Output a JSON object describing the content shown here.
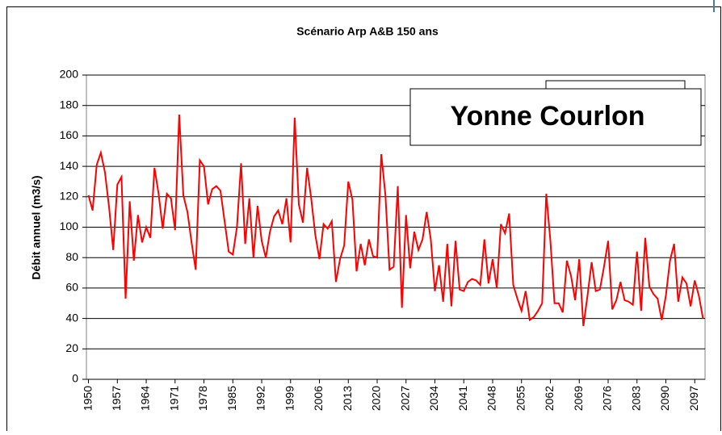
{
  "chart_data": {
    "type": "line",
    "title": "Scénario Arp A&B 150 ans",
    "y_label": "Débit annuel (m3/s)",
    "annotation": "Yonne Courlon",
    "categories": [
      "1950",
      null,
      null,
      null,
      null,
      null,
      null,
      "1957",
      null,
      null,
      null,
      null,
      null,
      null,
      "1964",
      null,
      null,
      null,
      null,
      null,
      null,
      "1971",
      null,
      null,
      null,
      null,
      null,
      null,
      "1978",
      null,
      null,
      null,
      null,
      null,
      null,
      "1985",
      null,
      null,
      null,
      null,
      null,
      null,
      "1992",
      null,
      null,
      null,
      null,
      null,
      null,
      "1999",
      null,
      null,
      null,
      null,
      null,
      null,
      "2006",
      null,
      null,
      null,
      null,
      null,
      null,
      "2013",
      null,
      null,
      null,
      null,
      null,
      null,
      "2020",
      null,
      null,
      null,
      null,
      null,
      null,
      "2027",
      null,
      null,
      null,
      null,
      null,
      null,
      "2034",
      null,
      null,
      null,
      null,
      null,
      null,
      "2041",
      null,
      null,
      null,
      null,
      null,
      null,
      "2048",
      null,
      null,
      null,
      null,
      null,
      null,
      "2055",
      null,
      null,
      null,
      null,
      null,
      null,
      "2062",
      null,
      null,
      null,
      null,
      null,
      null,
      "2069",
      null,
      null,
      null,
      null,
      null,
      null,
      "2076",
      null,
      null,
      null,
      null,
      null,
      null,
      "2083",
      null,
      null,
      null,
      null,
      null,
      null,
      "2090",
      null,
      null,
      null,
      null,
      null,
      null,
      "2097",
      null,
      null
    ],
    "values": [
      121,
      111,
      141,
      149,
      136,
      113,
      85,
      128,
      133,
      53,
      117,
      78,
      108,
      90,
      100,
      93,
      139,
      122,
      99,
      122,
      119,
      98,
      174,
      121,
      110,
      90,
      72,
      144,
      140,
      115,
      125,
      127,
      124,
      104,
      84,
      82,
      100,
      142,
      89,
      119,
      80,
      114,
      91,
      80,
      97,
      107,
      111,
      102,
      119,
      90,
      172,
      115,
      103,
      139,
      119,
      95,
      79,
      102,
      99,
      104,
      64,
      79,
      88,
      130,
      118,
      71,
      89,
      75,
      92,
      81,
      80,
      148,
      121,
      72,
      74,
      127,
      47,
      108,
      73,
      97,
      85,
      92,
      110,
      92,
      58,
      75,
      51,
      89,
      48,
      91,
      59,
      58,
      64,
      66,
      65,
      62,
      92,
      63,
      79,
      60,
      102,
      96,
      109,
      62,
      53,
      45,
      58,
      39,
      41,
      45,
      50,
      122,
      91,
      50,
      50,
      44,
      78,
      68,
      52,
      79,
      35,
      55,
      77,
      58,
      59,
      74,
      91,
      46,
      52,
      64,
      52,
      51,
      49,
      84,
      45,
      93,
      61,
      56,
      53,
      39,
      55,
      78,
      89,
      51,
      67,
      63,
      48,
      65,
      55,
      40
    ],
    "color": "#ff0000",
    "ylim": [
      0,
      200
    ],
    "yticks": [
      0,
      20,
      40,
      60,
      80,
      100,
      120,
      140,
      160,
      180,
      200
    ],
    "grid": true
  }
}
